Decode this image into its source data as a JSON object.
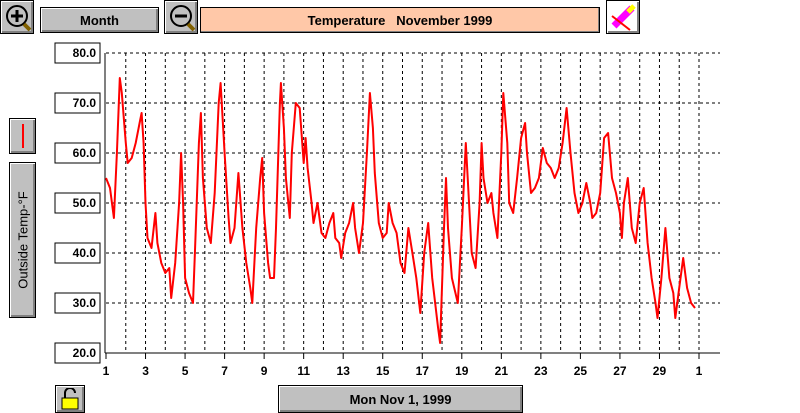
{
  "controls": {
    "period": "Month",
    "date": "Mon Nov 1, 1999"
  },
  "chart_data": {
    "type": "line",
    "title": "Temperature   November 1999",
    "ylabel": "Outside Temp-°F",
    "color": "#ff0000",
    "x": [
      1.0,
      1.2,
      1.4,
      1.55,
      1.7,
      1.8,
      2.0,
      2.1,
      2.3,
      2.5,
      2.7,
      2.8,
      2.9,
      3.0,
      3.1,
      3.3,
      3.5,
      3.6,
      3.8,
      4.0,
      4.2,
      4.3,
      4.5,
      4.7,
      4.8,
      4.9,
      5.0,
      5.2,
      5.4,
      5.5,
      5.7,
      5.8,
      5.9,
      6.1,
      6.3,
      6.5,
      6.7,
      6.8,
      7.0,
      7.2,
      7.3,
      7.5,
      7.7,
      7.9,
      8.1,
      8.3,
      8.4,
      8.6,
      8.8,
      8.9,
      9.0,
      9.2,
      9.3,
      9.5,
      9.6,
      9.8,
      9.85,
      10.0,
      10.1,
      10.3,
      10.4,
      10.6,
      10.8,
      11.0,
      11.1,
      11.2,
      11.4,
      11.5,
      11.7,
      11.9,
      12.1,
      12.3,
      12.5,
      12.6,
      12.8,
      12.9,
      13.1,
      13.3,
      13.5,
      13.6,
      13.8,
      14.0,
      14.2,
      14.35,
      14.5,
      14.6,
      14.8,
      15.0,
      15.2,
      15.3,
      15.5,
      15.7,
      15.9,
      16.1,
      16.3,
      16.5,
      16.7,
      16.9,
      17.1,
      17.3,
      17.5,
      17.8,
      17.9,
      18.1,
      18.2,
      18.3,
      18.5,
      18.8,
      19.0,
      19.2,
      19.3,
      19.5,
      19.7,
      19.9,
      20.0,
      20.1,
      20.3,
      20.5,
      20.6,
      20.8,
      21.0,
      21.1,
      21.3,
      21.4,
      21.6,
      21.8,
      22.0,
      22.2,
      22.3,
      22.5,
      22.7,
      22.9,
      23.1,
      23.3,
      23.5,
      23.7,
      23.9,
      24.1,
      24.3,
      24.5,
      24.7,
      24.9,
      25.1,
      25.3,
      25.5,
      25.6,
      25.8,
      26.0,
      26.2,
      26.4,
      26.6,
      26.8,
      27.0,
      27.1,
      27.2,
      27.4,
      27.6,
      27.8,
      28.0,
      28.2,
      28.4,
      28.6,
      28.8,
      28.9,
      29.1,
      29.3,
      29.5,
      29.7,
      29.8,
      30.0,
      30.2,
      30.4,
      30.6,
      30.8
    ],
    "values": [
      55,
      53,
      47,
      60,
      75,
      72,
      62,
      58,
      59,
      62,
      66,
      68,
      62,
      50,
      43,
      41,
      48,
      42,
      38,
      36,
      37,
      31,
      38,
      50,
      60,
      50,
      35,
      32,
      30,
      40,
      62,
      68,
      55,
      45,
      42,
      52,
      70,
      74,
      60,
      47,
      42,
      45,
      56,
      45,
      38,
      33,
      30,
      45,
      55,
      59,
      48,
      38,
      35,
      35,
      45,
      70,
      74,
      65,
      55,
      47,
      60,
      70,
      69,
      58,
      63,
      57,
      50,
      46,
      50,
      44,
      43,
      46,
      48,
      43,
      42,
      39,
      44,
      46,
      50,
      45,
      40,
      46,
      60,
      72,
      65,
      56,
      46,
      43,
      44,
      50,
      46,
      44,
      38,
      36,
      45,
      40,
      35,
      28,
      40,
      46,
      35,
      25,
      22,
      45,
      55,
      45,
      35,
      30,
      45,
      62,
      55,
      40,
      37,
      50,
      62,
      55,
      50,
      52,
      48,
      43,
      60,
      72,
      62,
      50,
      48,
      55,
      63,
      66,
      60,
      52,
      53,
      55,
      61,
      58,
      57,
      55,
      57,
      62,
      69,
      60,
      52,
      48,
      50,
      54,
      50,
      47,
      48,
      52,
      63,
      64,
      55,
      52,
      48,
      43,
      50,
      55,
      45,
      42,
      50,
      53,
      42,
      35,
      30,
      27,
      35,
      45,
      35,
      32,
      27,
      33,
      39,
      33,
      30,
      29
    ],
    "xlim": [
      1,
      31
    ],
    "xticks": [
      1,
      3,
      5,
      7,
      9,
      11,
      13,
      15,
      17,
      19,
      21,
      23,
      25,
      27,
      29,
      {
        "value": 31,
        "label": "1"
      }
    ],
    "xgrid": [
      2,
      3,
      4,
      5,
      6,
      7,
      8,
      9,
      10,
      11,
      12,
      13,
      14,
      15,
      16,
      17,
      18,
      19,
      20,
      21,
      22,
      23,
      24,
      25,
      26,
      27,
      28,
      29,
      30,
      31
    ],
    "ylim": [
      20,
      80
    ],
    "yticks": [
      {
        "value": 20,
        "label": "20.0"
      },
      {
        "value": 30,
        "label": "30.0"
      },
      {
        "value": 40,
        "label": "40.0"
      },
      {
        "value": 50,
        "label": "50.0"
      },
      {
        "value": 60,
        "label": "60.0"
      },
      {
        "value": 70,
        "label": "70.0"
      },
      {
        "value": 80,
        "label": "80.0"
      }
    ],
    "grid": true
  }
}
